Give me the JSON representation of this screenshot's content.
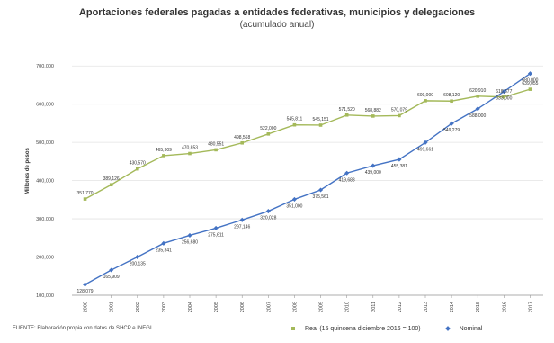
{
  "chart_data": {
    "type": "line",
    "title": "Aportaciones federales pagadas a entidades federativas, municipios y delegaciones",
    "subtitle": "(acumulado anual)",
    "ylabel": "Millones de pesos",
    "ylim": [
      100000,
      750000
    ],
    "yticks": [
      "100,000",
      "200,000",
      "300,000",
      "400,000",
      "500,000",
      "600,000",
      "700,000"
    ],
    "x": [
      "2000",
      "2001",
      "2002",
      "2003",
      "2004",
      "2005",
      "2006",
      "2007",
      "2008",
      "2009",
      "2010",
      "2011",
      "2012",
      "2013",
      "2014",
      "2015",
      "2016",
      "2017"
    ],
    "series": [
      {
        "name": "Real (15 quincena diciembre 2016 = 100)",
        "color": "#a4b95a",
        "marker": "square",
        "values": [
          351770,
          389126,
          430570,
          465309,
          470853,
          480551,
          498568,
          522000,
          545811,
          545151,
          571520,
          568882,
          570079,
          609000,
          608120,
          620910,
          618677,
          639055
        ],
        "labels": [
          "351,770",
          "389,126",
          "430,570",
          "465,309",
          "470,853",
          "480,551",
          "498,568",
          "522,000",
          "545,811",
          "545,151",
          "571,520",
          "568,882",
          "570,079",
          "609,000",
          "608,120",
          "620,910",
          "618,677",
          "639,055"
        ]
      },
      {
        "name": "Nominal",
        "color": "#4473c4",
        "marker": "diamond",
        "values": [
          128079,
          165909,
          200135,
          235841,
          256680,
          275611,
          297146,
          320028,
          351000,
          375561,
          419683,
          439000,
          455381,
          499661,
          549279,
          588000,
          633000,
          680000
        ],
        "labels": [
          "128,079",
          "165,909",
          "200,135",
          "235,841",
          "256,680",
          "275,611",
          "297,146",
          "320,028",
          "351,000",
          "375,561",
          "419,683",
          "439,000",
          "455,381",
          "499,661",
          "549,279",
          "588,000",
          "633,000",
          "680,000"
        ]
      }
    ],
    "grid": true,
    "legend_position": "bottom-right"
  },
  "source": "FUENTE: Elaboración propia con datos de SHCP e INEGI."
}
